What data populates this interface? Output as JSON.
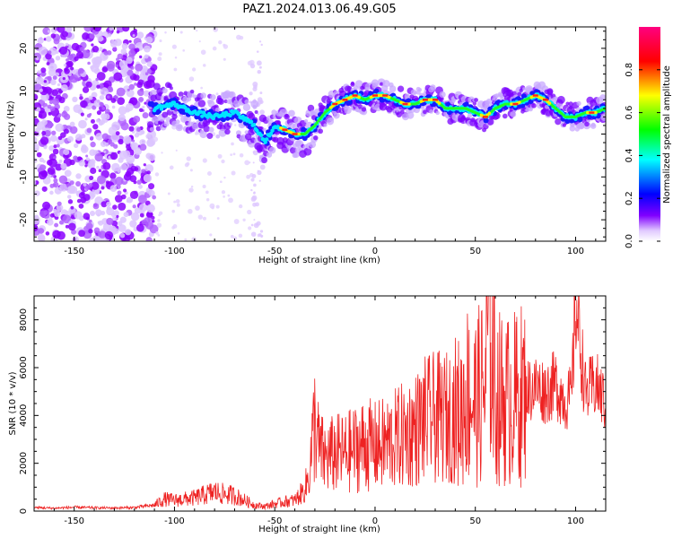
{
  "title": "PAZ1.2024.013.06.49.G05",
  "chart_data": [
    {
      "type": "heatmap",
      "xlabel": "Height of straight line (km)",
      "ylabel": "Frequency (Hz)",
      "xlim": [
        -170,
        115
      ],
      "ylim": [
        -25,
        25
      ],
      "x_ticks": [
        -150,
        -100,
        -50,
        0,
        50,
        100
      ],
      "y_ticks": [
        -20,
        -10,
        0,
        10,
        20
      ],
      "colorbar": {
        "label": "Normalized spectral amplitude",
        "range": [
          0,
          1
        ],
        "ticks": [
          0.0,
          0.2,
          0.4,
          0.6,
          0.8
        ],
        "colormap": [
          "#ffffff",
          "#8000ff",
          "#0000ff",
          "#00ffff",
          "#00ff00",
          "#ffff00",
          "#ff0000",
          "#ff0080"
        ]
      },
      "ridge": {
        "x": [
          -110,
          -100,
          -90,
          -80,
          -70,
          -60,
          -55,
          -50,
          -45,
          -40,
          -35,
          -30,
          -25,
          -20,
          -15,
          -10,
          -5,
          0,
          5,
          10,
          15,
          20,
          25,
          30,
          35,
          40,
          45,
          50,
          55,
          60,
          65,
          70,
          75,
          80,
          85,
          90,
          95,
          100,
          105,
          110,
          115
        ],
        "y": [
          6,
          7,
          5,
          4,
          5,
          2,
          -2,
          2,
          1,
          0,
          0,
          2,
          5,
          7,
          8,
          9,
          8,
          9,
          9,
          8,
          7,
          7,
          8,
          8,
          6,
          6,
          6,
          5,
          4,
          6,
          7,
          7,
          8,
          9,
          8,
          6,
          4,
          4,
          5,
          5,
          6
        ]
      }
    },
    {
      "type": "line",
      "xlabel": "Height of straight line (km)",
      "ylabel": "SNR (10 * v/v)",
      "xlim": [
        -170,
        115
      ],
      "ylim": [
        0,
        9000
      ],
      "x_ticks": [
        -150,
        -100,
        -50,
        0,
        50,
        100
      ],
      "y_ticks": [
        0,
        2000,
        4000,
        6000,
        8000
      ],
      "color": "#ff0000",
      "series": [
        {
          "x": [
            -170,
            -160,
            -150,
            -140,
            -130,
            -120,
            -110,
            -105,
            -100,
            -90,
            -80,
            -75,
            -70,
            -60,
            -55,
            -50,
            -45,
            -40,
            -35,
            -33,
            -30,
            -28,
            -25,
            -20,
            -15,
            -10,
            -5,
            0,
            5,
            10,
            15,
            20,
            25,
            30,
            35,
            40,
            43,
            45,
            50,
            55,
            57,
            60,
            65,
            70,
            75,
            80,
            85,
            90,
            95,
            98,
            100,
            105,
            110,
            115
          ],
          "y": [
            150,
            120,
            160,
            140,
            130,
            150,
            250,
            500,
            450,
            550,
            800,
            700,
            650,
            250,
            200,
            300,
            400,
            450,
            900,
            1500,
            3800,
            2600,
            2200,
            2400,
            2400,
            2600,
            2800,
            2700,
            2800,
            3000,
            3200,
            3400,
            3800,
            3900,
            3900,
            4100,
            4100,
            5000,
            4600,
            5200,
            8900,
            4800,
            4600,
            4700,
            5000,
            5200,
            5000,
            5300,
            4600,
            4800,
            8800,
            4900,
            5300,
            4500
          ]
        }
      ]
    }
  ]
}
